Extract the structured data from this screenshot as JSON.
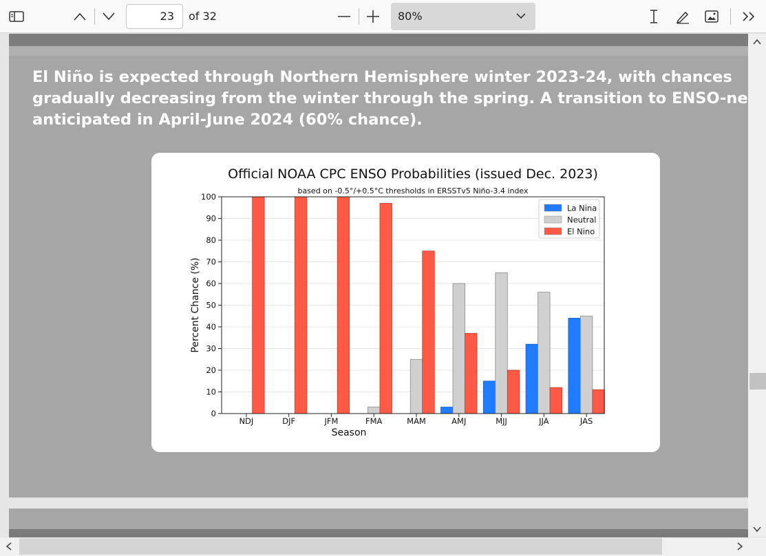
{
  "toolbar": {
    "current_page": "23",
    "page_count_label": "of 32",
    "zoom_value": "80%",
    "icons": [
      "sidebar-icon",
      "chevron-up-icon",
      "chevron-down-icon",
      "zoom-out-icon",
      "zoom-in-icon",
      "text-cursor-icon",
      "draw-icon",
      "image-icon",
      "more-tools-icon"
    ]
  },
  "slide": {
    "lines": [
      "El Niño is expected through Northern Hemisphere winter 2023-24, with chances",
      "gradually decreasing from the winter through the spring. A transition to ENSO-neutral is",
      "anticipated in April-June 2024 (60% chance)."
    ]
  },
  "chart_data": {
    "type": "bar",
    "title": "Official NOAA CPC ENSO Probabilities (issued Dec. 2023)",
    "subtitle": "based on -0.5°/+0.5°C thresholds in ERSSTv5 Niño-3.4 index",
    "xlabel": "Season",
    "ylabel": "Percent Chance (%)",
    "ylim": [
      0,
      100
    ],
    "yticks": [
      0,
      10,
      20,
      30,
      40,
      50,
      60,
      70,
      80,
      90,
      100
    ],
    "grid": true,
    "legend_position": "top-right",
    "categories": [
      "NDJ",
      "DJF",
      "JFM",
      "FMA",
      "MAM",
      "AMJ",
      "MJJ",
      "JJA",
      "JAS"
    ],
    "series": [
      {
        "name": "La Nina",
        "color": "#1f7bff",
        "values": [
          0,
          0,
          0,
          0,
          0,
          3,
          15,
          32,
          44
        ]
      },
      {
        "name": "Neutral",
        "color": "#d0d0d0",
        "values": [
          0,
          0,
          0,
          3,
          25,
          60,
          65,
          56,
          45
        ]
      },
      {
        "name": "El Nino",
        "color": "#ff5a45",
        "values": [
          100,
          100,
          100,
          97,
          75,
          37,
          20,
          12,
          11
        ]
      }
    ]
  }
}
